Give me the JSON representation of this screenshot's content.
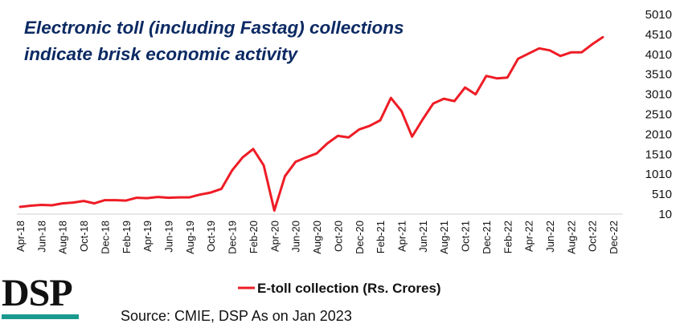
{
  "title_lines": [
    "Electronic toll (including Fastag) collections",
    "indicate brisk economic activity"
  ],
  "source": "Source: CMIE, DSP As on Jan 2023",
  "logo_text": "DSP",
  "colors": {
    "title": "#0c2a63",
    "series": "#ee1c25",
    "logo_bar": "#1a9a8e",
    "axis": "#d0d0d0",
    "text": "#111111"
  },
  "chart_data": {
    "type": "line",
    "title": "Electronic toll (including Fastag) collections indicate brisk economic activity",
    "xlabel": "",
    "ylabel": "",
    "grid": false,
    "legend_position": "bottom",
    "ylim": [
      10,
      5010
    ],
    "yticks": [
      10,
      510,
      1010,
      1510,
      2010,
      2510,
      3010,
      3510,
      4010,
      4510,
      5010
    ],
    "x_tick_labels": [
      "Apr-18",
      "Jun-18",
      "Aug-18",
      "Oct-18",
      "Dec-18",
      "Feb-19",
      "Apr-19",
      "Jun-19",
      "Aug-19",
      "Oct-19",
      "Dec-19",
      "Feb-20",
      "Apr-20",
      "Jun-20",
      "Aug-20",
      "Oct-20",
      "Dec-20",
      "Feb-21",
      "Apr-21",
      "Jun-21",
      "Aug-21",
      "Oct-21",
      "Dec-21",
      "Feb-22",
      "Apr-22",
      "Jun-22",
      "Aug-22",
      "Oct-22",
      "Dec-22"
    ],
    "categories": [
      "Apr-18",
      "May-18",
      "Jun-18",
      "Jul-18",
      "Aug-18",
      "Sep-18",
      "Oct-18",
      "Nov-18",
      "Dec-18",
      "Jan-19",
      "Feb-19",
      "Mar-19",
      "Apr-19",
      "May-19",
      "Jun-19",
      "Jul-19",
      "Aug-19",
      "Sep-19",
      "Oct-19",
      "Nov-19",
      "Dec-19",
      "Jan-20",
      "Feb-20",
      "Mar-20",
      "Apr-20",
      "May-20",
      "Jun-20",
      "Jul-20",
      "Aug-20",
      "Sep-20",
      "Oct-20",
      "Nov-20",
      "Dec-20",
      "Jan-21",
      "Feb-21",
      "Mar-21",
      "Apr-21",
      "May-21",
      "Jun-21",
      "Jul-21",
      "Aug-21",
      "Sep-21",
      "Oct-21",
      "Nov-21",
      "Dec-21",
      "Jan-22",
      "Feb-22",
      "Mar-22",
      "Apr-22",
      "May-22",
      "Jun-22",
      "Jul-22",
      "Aug-22",
      "Sep-22",
      "Oct-22",
      "Nov-22"
    ],
    "series": [
      {
        "name": "E-toll collection (Rs. Crores)",
        "values": [
          190,
          220,
          240,
          230,
          280,
          300,
          340,
          280,
          360,
          360,
          350,
          420,
          410,
          440,
          420,
          430,
          430,
          500,
          550,
          640,
          1100,
          1430,
          1640,
          1230,
          100,
          960,
          1320,
          1430,
          1530,
          1780,
          1970,
          1930,
          2130,
          2220,
          2360,
          2920,
          2590,
          1950,
          2380,
          2780,
          2900,
          2840,
          3180,
          3010,
          3470,
          3410,
          3430,
          3900,
          4030,
          4160,
          4110,
          3970,
          4060,
          4060,
          4260,
          4440
        ]
      }
    ]
  }
}
